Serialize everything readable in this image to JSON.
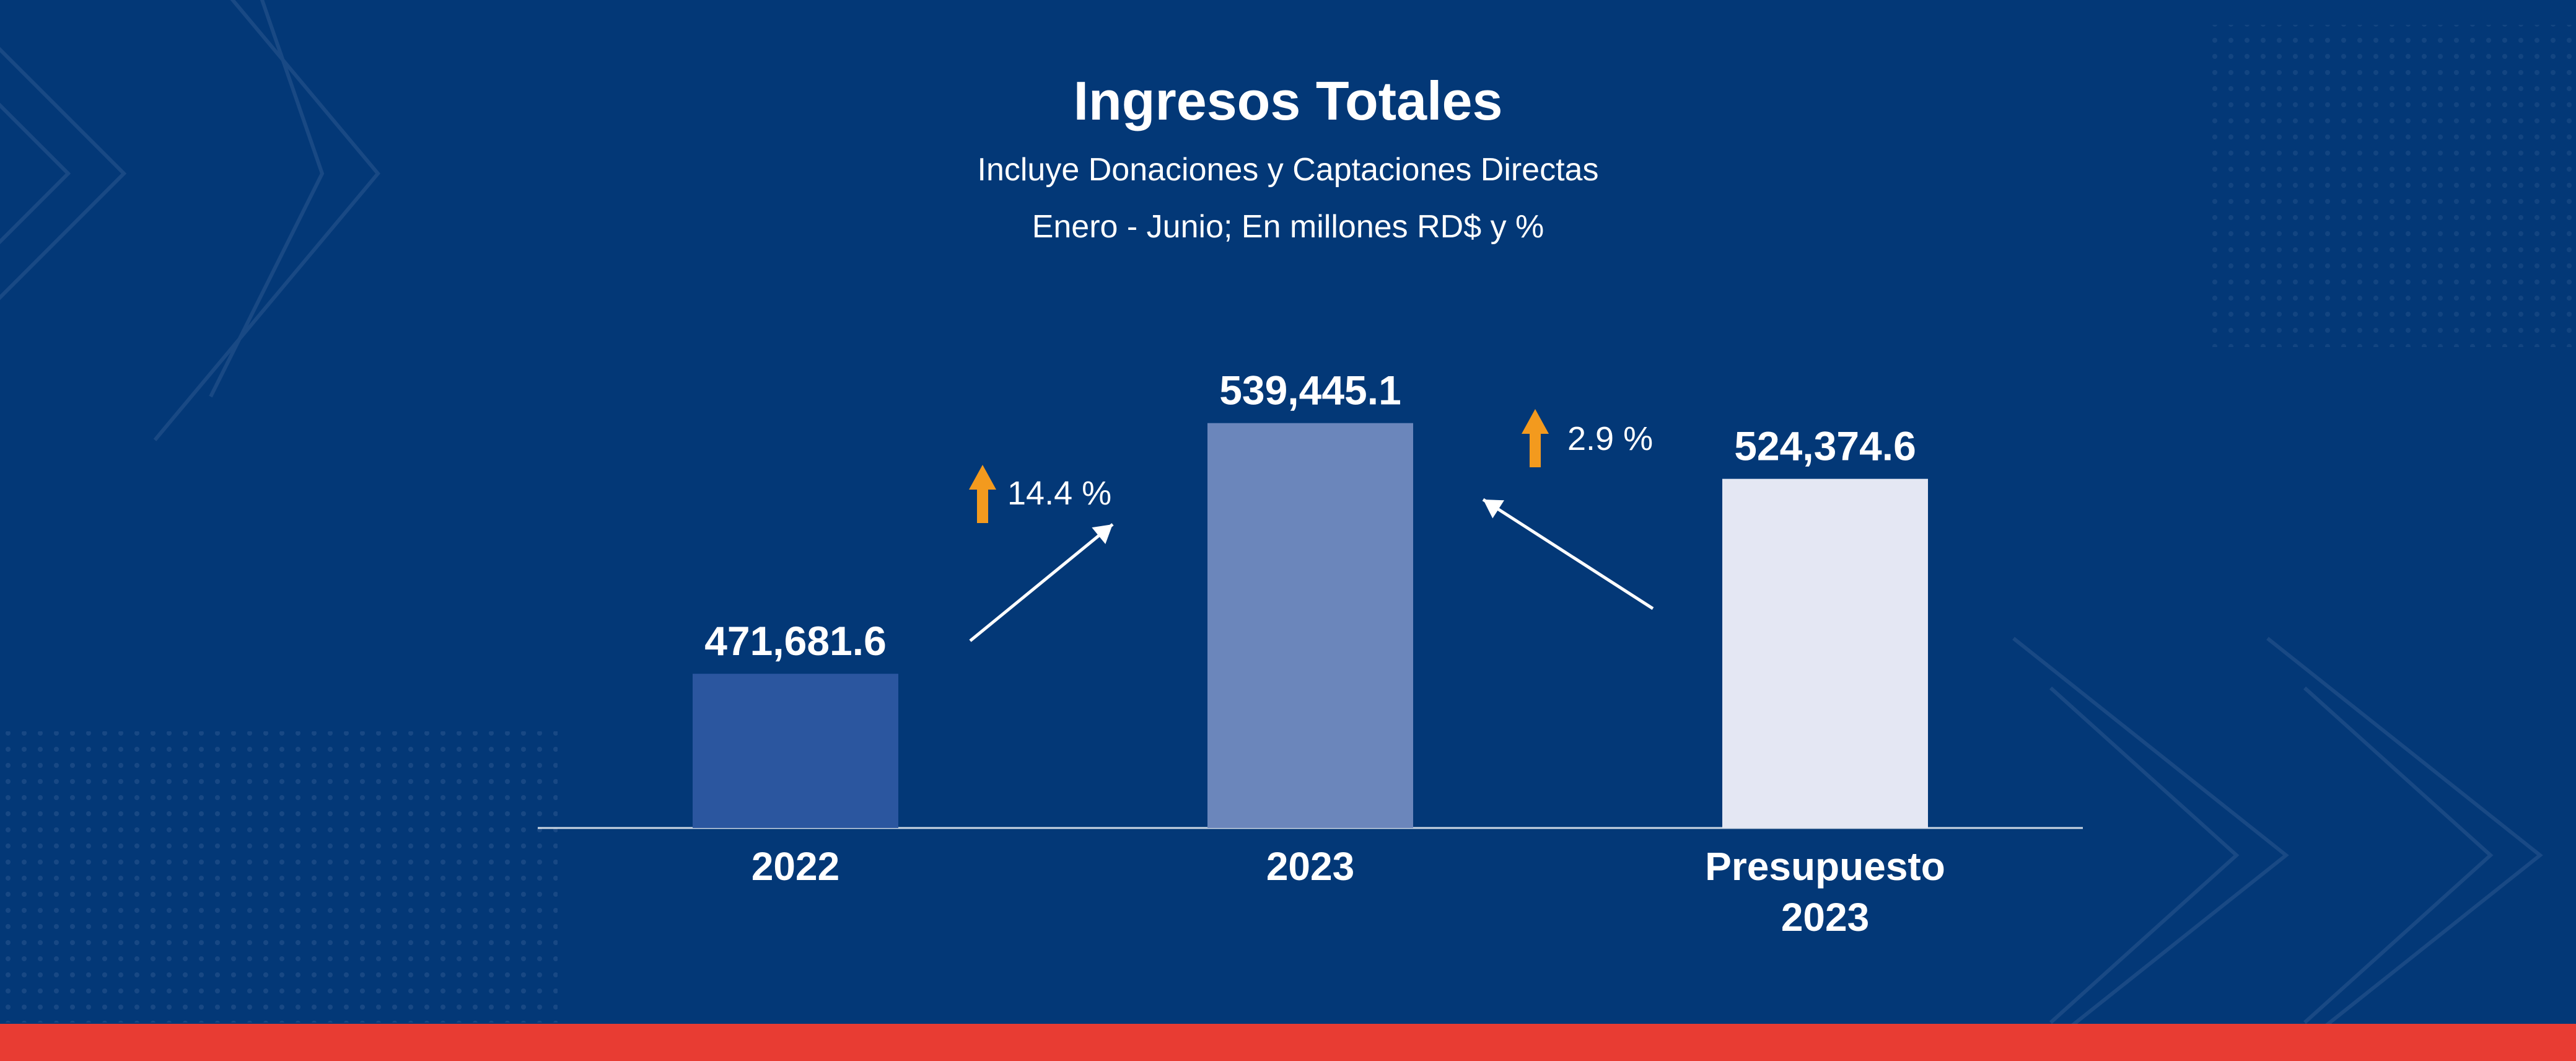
{
  "chart_data": {
    "type": "bar",
    "title": "Ingresos Totales",
    "subtitle": [
      "Incluye Donaciones y Captaciones Directas",
      "Enero - Junio; En millones RD$ y %"
    ],
    "categories": [
      [
        "2022"
      ],
      [
        "2023"
      ],
      [
        "Presupuesto",
        "2023"
      ]
    ],
    "values": [
      471681.6,
      539445.1,
      524374.6
    ],
    "value_labels": [
      "471,681.6",
      "539,445.1",
      "524,374.6"
    ],
    "colors": [
      "#2b569f",
      "#6b86bb",
      "#e4e7f3"
    ],
    "annotations": [
      {
        "text": "14.4 %",
        "from": 0,
        "to": 1
      },
      {
        "text": "2.9 %",
        "from": 2,
        "to": 1
      }
    ],
    "grid": false,
    "legend": "none"
  },
  "colors": {
    "background": "#033877",
    "accent_band": "#e83c33",
    "arrow_up": "#f39a1e"
  },
  "icons": [
    "up-arrow-icon",
    "chevron-decoration"
  ]
}
